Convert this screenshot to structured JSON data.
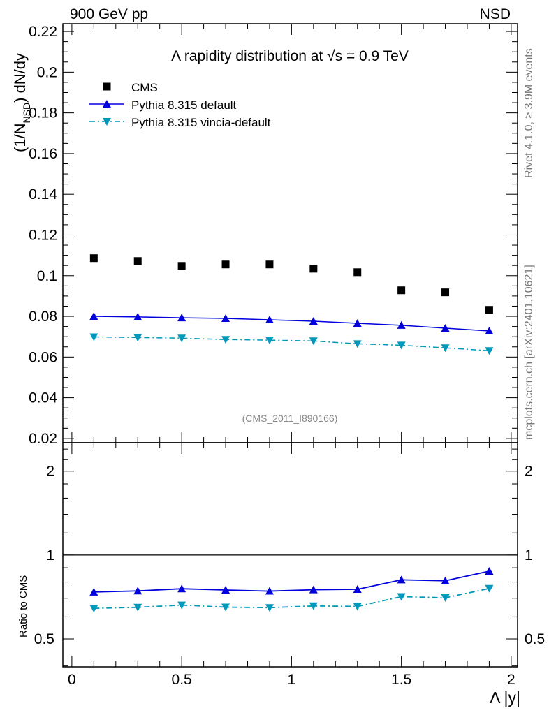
{
  "chart_data": {
    "type": "scatter",
    "title": "Λ rapidity distribution at √s = 0.9 TeV",
    "top_left_label": "900 GeV pp",
    "top_right_label": "NSD",
    "side_label_top": "Rivet 4.1.0, ≥ 3.9M events",
    "side_label_bottom": "mcplots.cern.ch [arXiv:2401.10621]",
    "analysis_label": "(CMS_2011_I890166)",
    "ylabel": "(1/N_NSD) dN/dy",
    "ylabel_main": "(1/N",
    "ylabel_sub": "NSD",
    "ylabel_tail": ") dN/dy",
    "xlabel": "Λ |y|",
    "ratio_ylabel": "Ratio to CMS",
    "xlim": [
      -0.041,
      2.029
    ],
    "ylim": [
      0.0179,
      0.2238
    ],
    "ratio_ylim": [
      0.397,
      2.53
    ],
    "xticks": [
      "0",
      "0.5",
      "1",
      "1.5",
      "2"
    ],
    "yticks": [
      "0.02",
      "0.04",
      "0.06",
      "0.08",
      "0.1",
      "0.12",
      "0.14",
      "0.16",
      "0.18",
      "0.2",
      "0.22"
    ],
    "ratio_yticks": [
      "0.5",
      "1",
      "2"
    ],
    "x": [
      0.1,
      0.3,
      0.5,
      0.7,
      0.9,
      1.1,
      1.3,
      1.5,
      1.7,
      1.9
    ],
    "series": [
      {
        "name": "CMS",
        "color": "#000000",
        "marker": "square",
        "values": [
          0.1086,
          0.1072,
          0.1048,
          0.1055,
          0.1055,
          0.1034,
          0.1017,
          0.0928,
          0.0918,
          0.0832
        ]
      },
      {
        "name": "Pythia 8.315 default",
        "color": "#0000dd",
        "marker": "triangle-up",
        "line": "solid",
        "values": [
          0.08,
          0.0797,
          0.0793,
          0.079,
          0.0783,
          0.0776,
          0.0766,
          0.0756,
          0.0742,
          0.0728
        ]
      },
      {
        "name": "Pythia 8.315 vincia-default",
        "color": "#0099bb",
        "marker": "triangle-down",
        "line": "dashdot",
        "values": [
          0.0699,
          0.0696,
          0.0693,
          0.0686,
          0.0683,
          0.0679,
          0.0665,
          0.0658,
          0.0645,
          0.0631
        ]
      }
    ]
  }
}
